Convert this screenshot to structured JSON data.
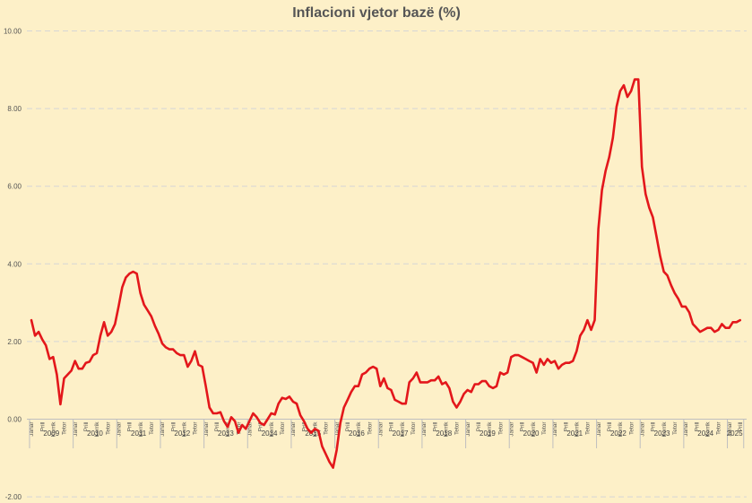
{
  "chart_data": {
    "type": "line",
    "title": "Inflacioni vjetor bazë (%)",
    "xlabel": "",
    "ylabel": "",
    "ylim": [
      -2,
      10
    ],
    "y_ticks": [
      "-2.00",
      "0.00",
      "2.00",
      "4.00",
      "6.00",
      "8.00",
      "10.00"
    ],
    "grid": "horizontal dashed",
    "line_color": "#e3171b",
    "month_labels": [
      "Janar",
      "Prill",
      "Korrik",
      "Tetor"
    ],
    "years": [
      "2009",
      "2010",
      "2011",
      "2012",
      "2013",
      "2014",
      "2015",
      "2016",
      "2017",
      "2018",
      "2019",
      "2020",
      "2021",
      "2022",
      "2023",
      "2024",
      "2025"
    ],
    "start": "2009-01",
    "values": [
      2.55,
      2.15,
      2.25,
      2.05,
      1.9,
      1.55,
      1.6,
      1.15,
      0.38,
      1.05,
      1.15,
      1.25,
      1.5,
      1.3,
      1.3,
      1.45,
      1.48,
      1.65,
      1.7,
      2.15,
      2.5,
      2.15,
      2.25,
      2.45,
      2.9,
      3.4,
      3.65,
      3.75,
      3.8,
      3.75,
      3.25,
      2.95,
      2.8,
      2.65,
      2.4,
      2.2,
      1.95,
      1.85,
      1.8,
      1.8,
      1.7,
      1.65,
      1.65,
      1.35,
      1.5,
      1.75,
      1.4,
      1.35,
      0.85,
      0.3,
      0.15,
      0.15,
      0.18,
      -0.05,
      -0.2,
      0.05,
      -0.05,
      -0.35,
      -0.15,
      -0.25,
      -0.05,
      0.15,
      0.05,
      -0.1,
      -0.15,
      0.0,
      0.15,
      0.12,
      0.4,
      0.55,
      0.52,
      0.58,
      0.45,
      0.4,
      0.1,
      -0.05,
      -0.25,
      -0.35,
      -0.25,
      -0.3,
      -0.7,
      -0.9,
      -1.1,
      -1.25,
      -0.8,
      -0.1,
      0.3,
      0.5,
      0.7,
      0.85,
      0.85,
      1.15,
      1.2,
      1.3,
      1.35,
      1.3,
      0.85,
      1.05,
      0.8,
      0.75,
      0.5,
      0.45,
      0.4,
      0.4,
      0.95,
      1.05,
      1.2,
      0.95,
      0.95,
      0.95,
      1.0,
      1.0,
      1.1,
      0.9,
      0.95,
      0.8,
      0.45,
      0.3,
      0.45,
      0.65,
      0.75,
      0.7,
      0.9,
      0.9,
      0.98,
      0.98,
      0.85,
      0.8,
      0.85,
      1.2,
      1.15,
      1.2,
      1.6,
      1.65,
      1.65,
      1.6,
      1.55,
      1.5,
      1.45,
      1.2,
      1.55,
      1.4,
      1.55,
      1.45,
      1.5,
      1.3,
      1.4,
      1.45,
      1.45,
      1.5,
      1.75,
      2.15,
      2.3,
      2.55,
      2.3,
      2.55,
      4.9,
      5.9,
      6.4,
      6.75,
      7.25,
      8.05,
      8.45,
      8.6,
      8.3,
      8.45,
      8.75,
      8.75,
      6.5,
      5.8,
      5.45,
      5.2,
      4.7,
      4.2,
      3.8,
      3.7,
      3.45,
      3.25,
      3.1,
      2.9,
      2.9,
      2.75,
      2.45,
      2.35,
      2.25,
      2.3,
      2.35,
      2.35,
      2.25,
      2.3,
      2.45,
      2.35,
      2.35,
      2.5,
      2.5,
      2.55
    ]
  }
}
